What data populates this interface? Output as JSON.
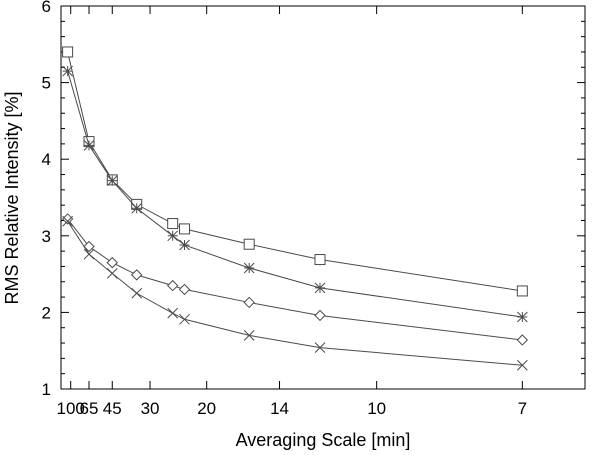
{
  "chart_data": {
    "type": "line",
    "title": "",
    "xlabel": "Averaging Scale [min]",
    "ylabel": "RMS Relative Intensity [%]",
    "x_scale": "reciprocal",
    "xlim": [
      140,
      6.2
    ],
    "ylim": [
      1,
      6
    ],
    "x_ticks": [
      100,
      65,
      45,
      30,
      20,
      14,
      10,
      7
    ],
    "y_ticks": [
      1,
      2,
      3,
      4,
      5,
      6
    ],
    "grid": false,
    "legend": "none",
    "colors": {
      "line": "#4a4a4a",
      "axis": "#000000"
    },
    "series": [
      {
        "marker": "square",
        "x": [
          110,
          65,
          45,
          34,
          25,
          23,
          16,
          12,
          7
        ],
        "y": [
          5.4,
          4.23,
          3.73,
          3.41,
          3.16,
          3.09,
          2.89,
          2.69,
          2.28
        ]
      },
      {
        "marker": "asterisk",
        "x": [
          110,
          65,
          45,
          34,
          25,
          23,
          16,
          12,
          7
        ],
        "y": [
          5.15,
          4.18,
          3.72,
          3.36,
          3.0,
          2.88,
          2.58,
          2.32,
          1.94
        ]
      },
      {
        "marker": "diamond",
        "x": [
          110,
          65,
          45,
          34,
          25,
          23,
          16,
          12,
          7
        ],
        "y": [
          3.22,
          2.86,
          2.65,
          2.49,
          2.35,
          2.3,
          2.13,
          1.96,
          1.64
        ]
      },
      {
        "marker": "x",
        "x": [
          110,
          65,
          45,
          34,
          25,
          23,
          16,
          12,
          7
        ],
        "y": [
          3.19,
          2.76,
          2.51,
          2.25,
          1.99,
          1.91,
          1.7,
          1.54,
          1.31
        ]
      }
    ]
  }
}
